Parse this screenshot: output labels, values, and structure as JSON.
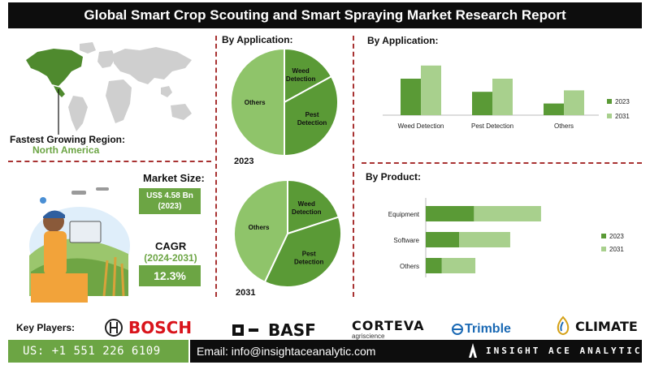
{
  "title": "Global Smart Crop Scouting and Smart Spraying Market Research Report",
  "region": {
    "label": "Fastest Growing Region:",
    "value": "North America"
  },
  "market_size": {
    "label": "Market Size:",
    "value": "US$ 4.58 Bn",
    "year": "(2023)"
  },
  "cagr": {
    "label": "CAGR",
    "period": "(2024-2031)",
    "value": "12.3%"
  },
  "pie_section": {
    "title": "By Application:"
  },
  "bar_section": {
    "title": "By Application:"
  },
  "product_section": {
    "title": "By Product:"
  },
  "key_players": {
    "label": "Key Players:",
    "logos": [
      "BOSCH",
      "BASF",
      "CORTEVA",
      "agriscience",
      "Trimble",
      "CLIMATE"
    ]
  },
  "footer": {
    "phone": "US: +1 551 226 6109",
    "email": "Email: info@insightaceanalytic.com",
    "brand": "INSIGHT ACE ANALYTIC"
  },
  "colors": {
    "dark_green": "#5a9a36",
    "light_green": "#a8d08d",
    "pie_green": "#8fc46a",
    "accent_red": "#a83232"
  },
  "chart_data": [
    {
      "type": "pie",
      "title": "2023",
      "labels": [
        "Weed Detection",
        "Pest Detection",
        "Others"
      ],
      "values": [
        17,
        33,
        50
      ]
    },
    {
      "type": "pie",
      "title": "2031",
      "labels": [
        "Weed Detection",
        "Pest Detection",
        "Others"
      ],
      "values": [
        20,
        37,
        43
      ]
    },
    {
      "type": "bar",
      "title": "By Application:",
      "categories": [
        "Weed Detection",
        "Pest Detection",
        "Others"
      ],
      "series": [
        {
          "name": "2023",
          "values": [
            2.5,
            1.6,
            0.8
          ]
        },
        {
          "name": "2031",
          "values": [
            3.4,
            2.5,
            1.7
          ]
        }
      ],
      "legend": "right"
    },
    {
      "type": "bar",
      "orientation": "horizontal",
      "stacked": true,
      "title": "By Product:",
      "categories": [
        "Equipment",
        "Software",
        "Others"
      ],
      "series": [
        {
          "name": "2023",
          "values": [
            1.8,
            1.25,
            0.6
          ]
        },
        {
          "name": "2031",
          "values": [
            2.5,
            1.9,
            1.25
          ]
        }
      ],
      "legend": "right"
    }
  ]
}
